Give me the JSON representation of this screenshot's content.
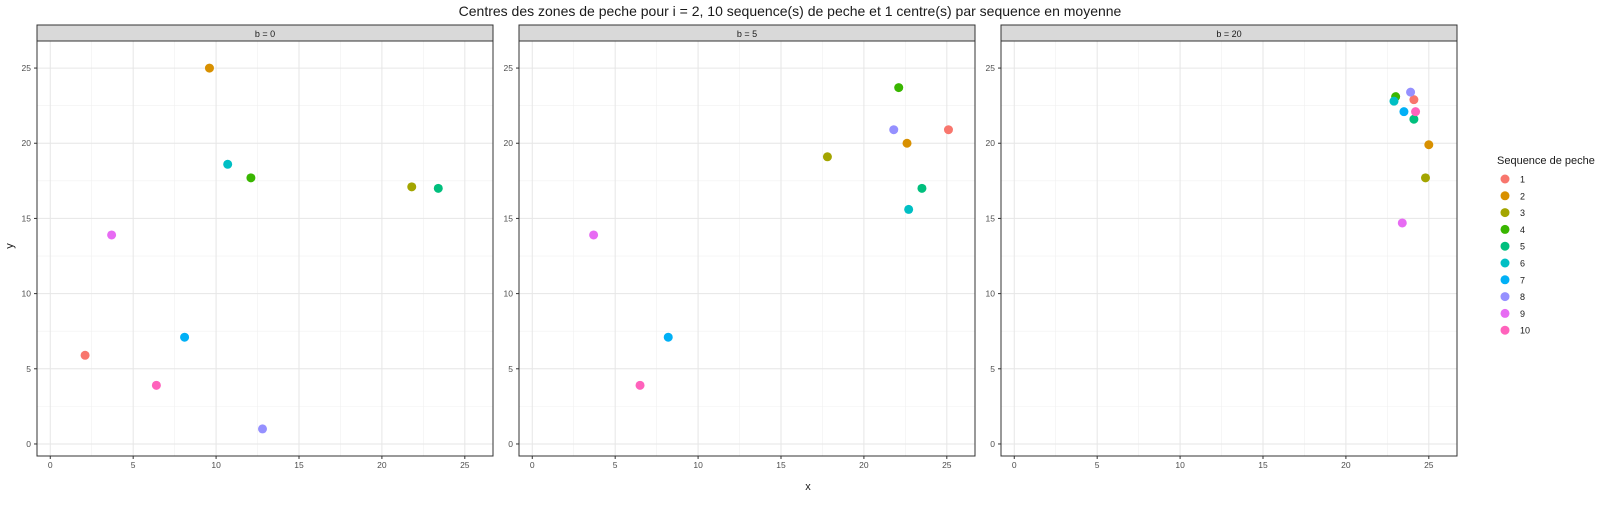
{
  "chart_data": {
    "type": "scatter",
    "title": "Centres des zones de peche pour i = 2, 10 sequence(s) de peche et 1 centre(s) par sequence en moyenne",
    "xlabel": "x",
    "ylabel": "y",
    "xlim": [
      -0.8,
      26.7
    ],
    "ylim": [
      -0.8,
      26.8
    ],
    "x_ticks": [
      0,
      5,
      10,
      15,
      20,
      25
    ],
    "y_ticks": [
      0,
      5,
      10,
      15,
      20,
      25
    ],
    "grid": true,
    "legend": {
      "title": "Sequence de peche",
      "position": "right",
      "entries": [
        "1",
        "2",
        "3",
        "4",
        "5",
        "6",
        "7",
        "8",
        "9",
        "10"
      ]
    },
    "colors": {
      "1": "#F8766D",
      "2": "#D89000",
      "3": "#A3A500",
      "4": "#39B600",
      "5": "#00BF7D",
      "6": "#00BFC4",
      "7": "#00B0F6",
      "8": "#9590FF",
      "9": "#E76BF3",
      "10": "#FF62BC"
    },
    "facets": [
      {
        "label": "b = 0",
        "points": [
          {
            "series": "1",
            "x": 2.1,
            "y": 5.9
          },
          {
            "series": "2",
            "x": 9.6,
            "y": 25.0
          },
          {
            "series": "3",
            "x": 21.8,
            "y": 17.1
          },
          {
            "series": "4",
            "x": 12.1,
            "y": 17.7
          },
          {
            "series": "5",
            "x": 23.4,
            "y": 17.0
          },
          {
            "series": "6",
            "x": 10.7,
            "y": 18.6
          },
          {
            "series": "7",
            "x": 8.1,
            "y": 7.1
          },
          {
            "series": "8",
            "x": 12.8,
            "y": 1.0
          },
          {
            "series": "9",
            "x": 3.7,
            "y": 13.9
          },
          {
            "series": "10",
            "x": 6.4,
            "y": 3.9
          }
        ]
      },
      {
        "label": "b = 5",
        "points": [
          {
            "series": "1",
            "x": 25.1,
            "y": 20.9
          },
          {
            "series": "2",
            "x": 22.6,
            "y": 20.0
          },
          {
            "series": "3",
            "x": 17.8,
            "y": 19.1
          },
          {
            "series": "4",
            "x": 22.1,
            "y": 23.7
          },
          {
            "series": "5",
            "x": 23.5,
            "y": 17.0
          },
          {
            "series": "6",
            "x": 22.7,
            "y": 15.6
          },
          {
            "series": "7",
            "x": 8.2,
            "y": 7.1
          },
          {
            "series": "8",
            "x": 21.8,
            "y": 20.9
          },
          {
            "series": "9",
            "x": 3.7,
            "y": 13.9
          },
          {
            "series": "10",
            "x": 6.5,
            "y": 3.9
          }
        ]
      },
      {
        "label": "b = 20",
        "points": [
          {
            "series": "1",
            "x": 24.1,
            "y": 22.9
          },
          {
            "series": "2",
            "x": 25.0,
            "y": 19.9
          },
          {
            "series": "3",
            "x": 24.8,
            "y": 17.7
          },
          {
            "series": "4",
            "x": 23.0,
            "y": 23.1
          },
          {
            "series": "5",
            "x": 24.1,
            "y": 21.6
          },
          {
            "series": "6",
            "x": 22.9,
            "y": 22.8
          },
          {
            "series": "7",
            "x": 23.5,
            "y": 22.1
          },
          {
            "series": "8",
            "x": 23.9,
            "y": 23.4
          },
          {
            "series": "9",
            "x": 23.4,
            "y": 14.7
          },
          {
            "series": "10",
            "x": 24.2,
            "y": 22.1
          }
        ]
      }
    ]
  }
}
